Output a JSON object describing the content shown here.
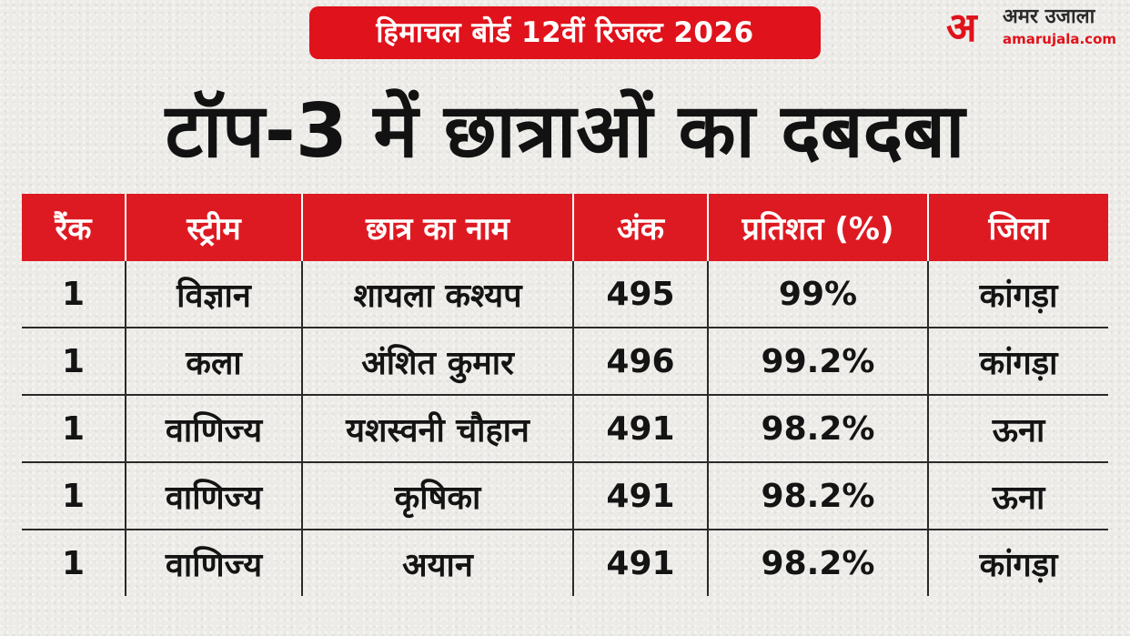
{
  "badge": {
    "text": "हिमाचल बोर्ड 12वीं रिजल्ट 2026"
  },
  "logo": {
    "mark": "अ",
    "name": "अमर उजाला",
    "url": "amarujala.com"
  },
  "headline": "टॉप-3 में छात्राओं का दबदबा",
  "table": {
    "headers": [
      "रैंक",
      "स्ट्रीम",
      "छात्र का नाम",
      "अंक",
      "प्रतिशत (%)",
      "जिला"
    ],
    "rows": [
      [
        "1",
        "विज्ञान",
        "शायला कश्यप",
        "495",
        "99%",
        "कांगड़ा"
      ],
      [
        "1",
        "कला",
        "अंशित कुमार",
        "496",
        "99.2%",
        "कांगड़ा"
      ],
      [
        "1",
        "वाणिज्य",
        "यशस्वनी चौहान",
        "491",
        "98.2%",
        "ऊना"
      ],
      [
        "1",
        "वाणिज्य",
        "कृषिका",
        "491",
        "98.2%",
        "ऊना"
      ],
      [
        "1",
        "वाणिज्य",
        "अयान",
        "491",
        "98.2%",
        "कांगड़ा"
      ]
    ]
  },
  "colors": {
    "accent_red": "#e0121b",
    "text_dark": "#121212",
    "background": "#ecebe7"
  }
}
